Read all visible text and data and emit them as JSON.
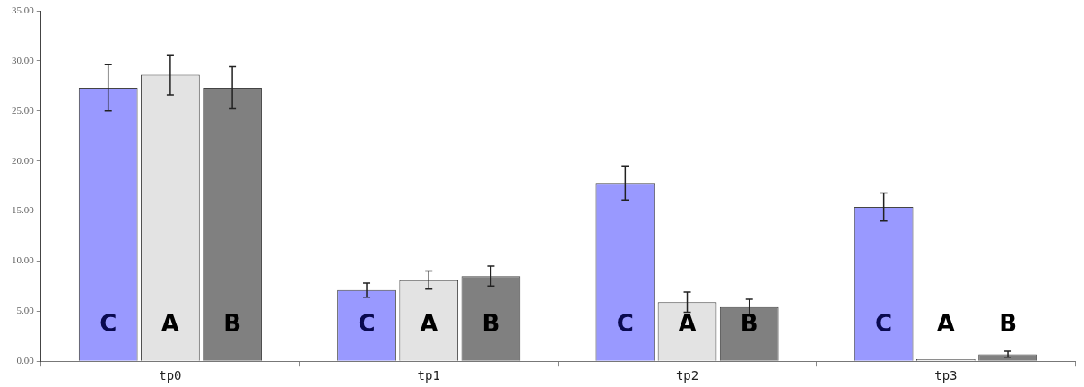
{
  "chart_data": {
    "type": "bar",
    "categories": [
      "tp0",
      "tp1",
      "tp2",
      "tp3"
    ],
    "series": [
      {
        "name": "C",
        "color": "#9999ff",
        "values": [
          27.3,
          7.1,
          17.8,
          15.4
        ],
        "errors": [
          2.3,
          0.7,
          1.7,
          1.4
        ]
      },
      {
        "name": "A",
        "color": "#e3e3e3",
        "values": [
          28.6,
          8.1,
          5.9,
          0.2
        ],
        "errors": [
          2.0,
          0.9,
          1.0,
          null
        ]
      },
      {
        "name": "B",
        "color": "#808080",
        "values": [
          27.3,
          8.5,
          5.4,
          0.7
        ],
        "errors": [
          2.1,
          1.0,
          0.8,
          0.3
        ]
      }
    ],
    "ylim": [
      0,
      35
    ],
    "yticks": [
      {
        "value": 0,
        "label": "0.00"
      },
      {
        "value": 5,
        "label": "5.00"
      },
      {
        "value": 10,
        "label": "10.00"
      },
      {
        "value": 15,
        "label": "15.00"
      },
      {
        "value": 20,
        "label": "20.00"
      },
      {
        "value": 25,
        "label": "25.00"
      },
      {
        "value": 30,
        "label": "30.00"
      },
      {
        "value": 35,
        "label": "35.00"
      }
    ],
    "grid": false,
    "legend": false
  }
}
